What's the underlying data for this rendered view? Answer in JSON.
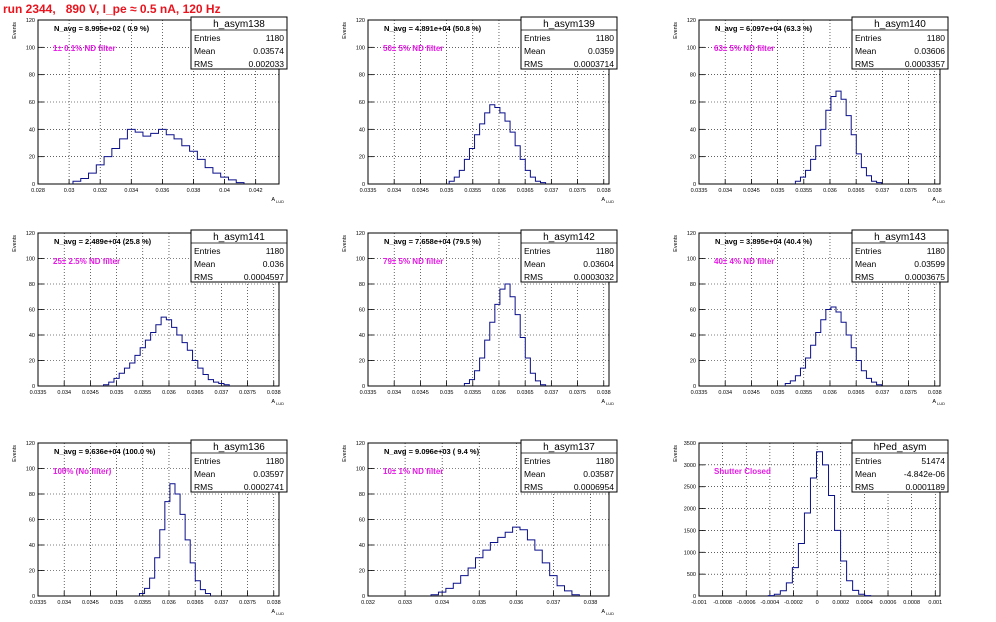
{
  "canvas_title": "run 2344,   890 V, I_pe ≈ 0.5 nA, 120 Hz",
  "chart_data": [
    {
      "type": "bar",
      "name": "h_asym138",
      "nav": "N_avg = 8.995e+02 ( 0.9 %)",
      "label": "1± 0.1% ND filter",
      "stats": [
        [
          "Entries",
          "1180"
        ],
        [
          "Mean",
          "0.03574"
        ],
        [
          "RMS",
          "0.002033"
        ]
      ],
      "ylabel": "Events",
      "xlabel": "A",
      "xlim": [
        0.028,
        0.0435
      ],
      "ylim": [
        0,
        120
      ],
      "xticks": [
        "0.028",
        "0.03",
        "0.032",
        "0.034",
        "0.036",
        "0.038",
        "0.04",
        "0.042"
      ],
      "yticks": [
        "0",
        "20",
        "40",
        "60",
        "80",
        "100",
        "120"
      ],
      "centers": [
        0.0305,
        0.031,
        0.0315,
        0.032,
        0.0325,
        0.033,
        0.0335,
        0.034,
        0.0345,
        0.035,
        0.0355,
        0.036,
        0.0365,
        0.037,
        0.0375,
        0.038,
        0.0385,
        0.039,
        0.0395,
        0.04,
        0.0405,
        0.041
      ],
      "values": [
        2,
        4,
        8,
        14,
        20,
        26,
        33,
        40,
        38,
        35,
        37,
        40,
        36,
        33,
        28,
        24,
        18,
        12,
        8,
        5,
        3,
        1
      ]
    },
    {
      "type": "bar",
      "name": "h_asym139",
      "nav": "N_avg = 4.891e+04 (50.8 %)",
      "label": "50± 5% ND filter",
      "stats": [
        [
          "Entries",
          "1180"
        ],
        [
          "Mean",
          "0.0359"
        ],
        [
          "RMS",
          "0.0003714"
        ]
      ],
      "ylabel": "Events",
      "xlabel": "A",
      "xlim": [
        0.03335,
        0.0381
      ],
      "ylim": [
        0,
        120
      ],
      "xticks": [
        "0.0335",
        "0.034",
        "0.0345",
        "0.035",
        "0.0355",
        "0.036",
        "0.0365",
        "0.037",
        "0.0375",
        "0.038"
      ],
      "yticks": [
        "0",
        "20",
        "40",
        "60",
        "80",
        "100",
        "120"
      ],
      "centers": [
        0.035,
        0.0351,
        0.0352,
        0.0353,
        0.0354,
        0.0355,
        0.0356,
        0.0357,
        0.0358,
        0.0359,
        0.036,
        0.0361,
        0.0362,
        0.0363,
        0.0364,
        0.0365,
        0.0366,
        0.0367,
        0.0368
      ],
      "values": [
        2,
        5,
        10,
        18,
        26,
        36,
        44,
        52,
        58,
        56,
        52,
        46,
        38,
        28,
        18,
        10,
        5,
        2,
        1
      ]
    },
    {
      "type": "bar",
      "name": "h_asym140",
      "nav": "N_avg = 6.097e+04 (63.3 %)",
      "label": "63± 5% ND filter",
      "stats": [
        [
          "Entries",
          "1180"
        ],
        [
          "Mean",
          "0.03606"
        ],
        [
          "RMS",
          "0.0003357"
        ]
      ],
      "ylabel": "Events",
      "xlabel": "A",
      "xlim": [
        0.03335,
        0.0381
      ],
      "ylim": [
        0,
        120
      ],
      "xticks": [
        "0.0335",
        "0.034",
        "0.0345",
        "0.035",
        "0.0355",
        "0.036",
        "0.0365",
        "0.037",
        "0.0375",
        "0.038"
      ],
      "yticks": [
        "0",
        "20",
        "40",
        "60",
        "80",
        "100",
        "120"
      ],
      "centers": [
        0.0353,
        0.0354,
        0.0355,
        0.0356,
        0.0357,
        0.0358,
        0.0359,
        0.036,
        0.0361,
        0.0362,
        0.0363,
        0.0364,
        0.0365,
        0.0366,
        0.0367,
        0.0368,
        0.0369
      ],
      "values": [
        2,
        5,
        10,
        18,
        28,
        40,
        54,
        64,
        68,
        62,
        50,
        36,
        22,
        12,
        6,
        2,
        1
      ]
    },
    {
      "type": "bar",
      "name": "h_asym141",
      "nav": "N_avg = 2.489e+04 (25.8 %)",
      "label": "25± 2.5% ND filter",
      "stats": [
        [
          "Entries",
          "1180"
        ],
        [
          "Mean",
          "0.036"
        ],
        [
          "RMS",
          "0.0004597"
        ]
      ],
      "ylabel": "Events",
      "xlabel": "A",
      "xlim": [
        0.0335,
        0.0381
      ],
      "ylim": [
        0,
        120
      ],
      "xticks": [
        "0.0335",
        "0.034",
        "0.0345",
        "0.035",
        "0.0355",
        "0.036",
        "0.0365",
        "0.037",
        "0.0375",
        "0.038"
      ],
      "yticks": [
        "0",
        "20",
        "40",
        "60",
        "80",
        "100",
        "120"
      ],
      "centers": [
        0.0348,
        0.0349,
        0.035,
        0.0351,
        0.0352,
        0.0353,
        0.0354,
        0.0355,
        0.0356,
        0.0357,
        0.0358,
        0.0359,
        0.036,
        0.0361,
        0.0362,
        0.0363,
        0.0364,
        0.0365,
        0.0366,
        0.0367,
        0.0368,
        0.0369,
        0.037,
        0.0371
      ],
      "values": [
        1,
        3,
        6,
        10,
        14,
        18,
        24,
        30,
        36,
        42,
        48,
        54,
        52,
        46,
        40,
        34,
        28,
        20,
        14,
        9,
        5,
        3,
        2,
        1
      ]
    },
    {
      "type": "bar",
      "name": "h_asym142",
      "nav": "N_avg = 7.658e+04 (79.5 %)",
      "label": "79± 5% ND filter",
      "stats": [
        [
          "Entries",
          "1180"
        ],
        [
          "Mean",
          "0.03604"
        ],
        [
          "RMS",
          "0.0003032"
        ]
      ],
      "ylabel": "Events",
      "xlabel": "A",
      "xlim": [
        0.03335,
        0.0381
      ],
      "ylim": [
        0,
        120
      ],
      "xticks": [
        "0.0335",
        "0.034",
        "0.0345",
        "0.035",
        "0.0355",
        "0.036",
        "0.0365",
        "0.037",
        "0.0375",
        "0.038"
      ],
      "yticks": [
        "0",
        "20",
        "40",
        "60",
        "80",
        "100",
        "120"
      ],
      "centers": [
        0.0353,
        0.0354,
        0.0355,
        0.0356,
        0.0357,
        0.0358,
        0.0359,
        0.036,
        0.0361,
        0.0362,
        0.0363,
        0.0364,
        0.0365,
        0.0366,
        0.0367,
        0.0368
      ],
      "values": [
        2,
        5,
        12,
        22,
        36,
        50,
        64,
        76,
        80,
        70,
        56,
        38,
        22,
        10,
        4,
        1
      ]
    },
    {
      "type": "bar",
      "name": "h_asym143",
      "nav": "N_avg = 3.895e+04 (40.4 %)",
      "label": "40± 4% ND filter",
      "stats": [
        [
          "Entries",
          "1180"
        ],
        [
          "Mean",
          "0.03599"
        ],
        [
          "RMS",
          "0.0003675"
        ]
      ],
      "ylabel": "Events",
      "xlabel": "A",
      "xlim": [
        0.03335,
        0.0381
      ],
      "ylim": [
        0,
        120
      ],
      "xticks": [
        "0.0335",
        "0.034",
        "0.0345",
        "0.035",
        "0.0355",
        "0.036",
        "0.0365",
        "0.037",
        "0.0375",
        "0.038"
      ],
      "yticks": [
        "0",
        "20",
        "40",
        "60",
        "80",
        "100",
        "120"
      ],
      "centers": [
        0.0351,
        0.0352,
        0.0353,
        0.0354,
        0.0355,
        0.0356,
        0.0357,
        0.0358,
        0.0359,
        0.036,
        0.0361,
        0.0362,
        0.0363,
        0.0364,
        0.0365,
        0.0366,
        0.0367,
        0.0368,
        0.0369
      ],
      "values": [
        2,
        4,
        8,
        14,
        22,
        32,
        42,
        52,
        60,
        62,
        58,
        50,
        40,
        30,
        20,
        12,
        6,
        3,
        1
      ]
    },
    {
      "type": "bar",
      "name": "h_asym136",
      "nav": "N_avg = 9.636e+04 (100.0 %)",
      "label": "100% (No filter)",
      "stats": [
        [
          "Entries",
          "1180"
        ],
        [
          "Mean",
          "0.03597"
        ],
        [
          "RMS",
          "0.0002741"
        ]
      ],
      "ylabel": "Events",
      "xlabel": "A",
      "xlim": [
        0.03335,
        0.0381
      ],
      "ylim": [
        0,
        120
      ],
      "xticks": [
        "0.0335",
        "0.034",
        "0.0345",
        "0.035",
        "0.0355",
        "0.036",
        "0.0365",
        "0.037",
        "0.0375",
        "0.038"
      ],
      "yticks": [
        "0",
        "20",
        "40",
        "60",
        "80",
        "100",
        "120"
      ],
      "centers": [
        0.0354,
        0.0355,
        0.0356,
        0.0357,
        0.0358,
        0.0359,
        0.036,
        0.0361,
        0.0362,
        0.0363,
        0.0364,
        0.0365,
        0.0366,
        0.0367
      ],
      "values": [
        2,
        6,
        14,
        30,
        52,
        74,
        88,
        80,
        64,
        44,
        26,
        12,
        5,
        2
      ]
    },
    {
      "type": "bar",
      "name": "h_asym137",
      "nav": "N_avg = 9.096e+03 ( 9.4 %)",
      "label": "10± 1% ND filter",
      "stats": [
        [
          "Entries",
          "1180"
        ],
        [
          "Mean",
          "0.03587"
        ],
        [
          "RMS",
          "0.0006954"
        ]
      ],
      "ylabel": "Events",
      "xlabel": "A",
      "xlim": [
        0.032,
        0.0385
      ],
      "ylim": [
        0,
        120
      ],
      "xticks": [
        "0.032",
        "0.033",
        "0.034",
        "0.035",
        "0.036",
        "0.037",
        "0.038"
      ],
      "yticks": [
        "0",
        "20",
        "40",
        "60",
        "80",
        "100",
        "120"
      ],
      "centers": [
        0.0338,
        0.034,
        0.0342,
        0.0344,
        0.0346,
        0.0348,
        0.035,
        0.0352,
        0.0354,
        0.0356,
        0.0358,
        0.036,
        0.0362,
        0.0364,
        0.0366,
        0.0368,
        0.037,
        0.0372,
        0.0374,
        0.0376
      ],
      "values": [
        1,
        3,
        6,
        10,
        16,
        22,
        30,
        36,
        42,
        46,
        50,
        54,
        52,
        44,
        36,
        26,
        16,
        8,
        4,
        1
      ]
    },
    {
      "type": "bar",
      "name": "hPed_asym",
      "nav": "",
      "label": "Shutter Closed",
      "stats": [
        [
          "Entries",
          "51474"
        ],
        [
          "Mean",
          "-4.842e-06"
        ],
        [
          "RMS",
          "0.0001189"
        ]
      ],
      "ylabel": "Events",
      "xlabel": "",
      "xlim": [
        -0.001,
        0.001
      ],
      "ylim": [
        0,
        3500
      ],
      "xticks": [
        "-0.001",
        "-0.0008",
        "-0.0006",
        "-0.0004",
        "-0.0002",
        "0",
        "0.0002",
        "0.0004",
        "0.0006",
        "0.0008",
        "0.001"
      ],
      "yticks": [
        "0",
        "500",
        "1000",
        "1500",
        "2000",
        "2500",
        "3000",
        "3500"
      ],
      "centers": [
        -0.0004,
        -0.00035,
        -0.0003,
        -0.00025,
        -0.0002,
        -0.00015,
        -0.0001,
        -5e-05,
        0,
        5e-05,
        0.0001,
        0.00015,
        0.0002,
        0.00025,
        0.0003,
        0.00035,
        0.0004
      ],
      "values": [
        10,
        40,
        120,
        300,
        650,
        1200,
        1900,
        2700,
        3300,
        3000,
        2300,
        1500,
        800,
        350,
        130,
        40,
        10
      ]
    }
  ]
}
